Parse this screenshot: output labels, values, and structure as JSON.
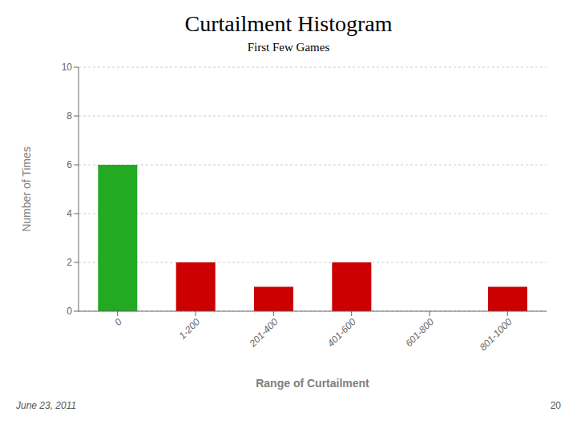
{
  "chart_data": {
    "type": "bar",
    "title": "Curtailment Histogram",
    "subtitle": "First Few Games",
    "xlabel": "Range of Curtailment",
    "ylabel": "Number of Times",
    "categories": [
      "0",
      "1-200",
      "201-400",
      "401-600",
      "601-800",
      "801-1000"
    ],
    "values": [
      6,
      2,
      1,
      2,
      0,
      1
    ],
    "colors": [
      "#22aa22",
      "#cc0000",
      "#cc0000",
      "#cc0000",
      "#cc0000",
      "#cc0000"
    ],
    "ylim": [
      0,
      10
    ],
    "yticks": [
      0,
      2,
      4,
      6,
      8,
      10
    ],
    "grid": true,
    "annotations": [
      "June 23, 2011",
      "20"
    ]
  }
}
